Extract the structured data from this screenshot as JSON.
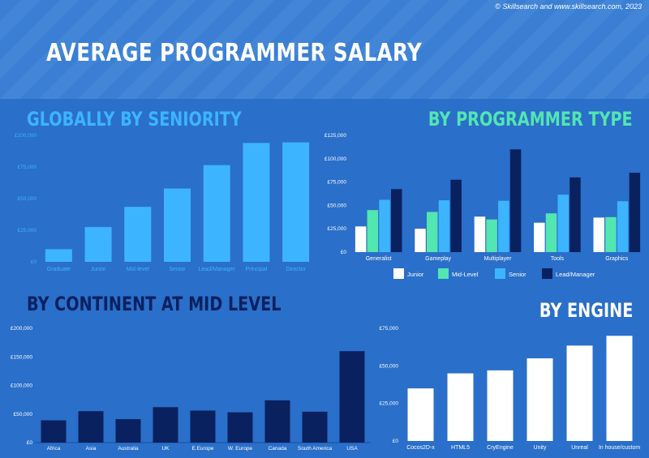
{
  "header": {
    "title": "AVERAGE PROGRAMMER SALARY",
    "copyright": "© Skillsearch and www.skillsearch.com, 2023"
  },
  "colors": {
    "background": "#2a6fc9",
    "header_band": "#3a7fd3",
    "light_blue": "#3db4ff",
    "mint": "#52e6b0",
    "navy": "#0a2160",
    "white": "#ffffff"
  },
  "chart_data": [
    {
      "id": "seniority",
      "type": "bar",
      "title": "GLOBALLY BY SENIORITY",
      "categories": [
        "Graduate",
        "Junior",
        "Mid-level",
        "Senior",
        "Lead/Manager",
        "Principal",
        "Director"
      ],
      "values": [
        10000,
        27500,
        43500,
        58000,
        76500,
        94000,
        94500
      ],
      "yticks": [
        "£0",
        "£25,000",
        "£50,000",
        "£75,000",
        "£100,000"
      ],
      "ylim": [
        0,
        100000
      ],
      "color": "#3db4ff"
    },
    {
      "id": "type",
      "type": "bar",
      "title": "BY PROGRAMMER TYPE",
      "categories": [
        "Generalist",
        "Gameplay",
        "Multiplayer",
        "Tools",
        "Graphics"
      ],
      "series": [
        {
          "name": "Junior",
          "color": "#ffffff",
          "values": [
            27500,
            25000,
            38000,
            31500,
            37000
          ]
        },
        {
          "name": "Mid-Level",
          "color": "#52e6b0",
          "values": [
            45000,
            43000,
            35000,
            41500,
            37500
          ]
        },
        {
          "name": "Senior",
          "color": "#3db4ff",
          "values": [
            56000,
            55500,
            55000,
            61500,
            54500
          ]
        },
        {
          "name": "Lead/Manager",
          "color": "#0a2160",
          "values": [
            67500,
            77500,
            110000,
            80000,
            85000
          ]
        }
      ],
      "yticks": [
        "£0",
        "£25,000",
        "£50,000",
        "£75,000",
        "£100,000",
        "£125,000"
      ],
      "ylim": [
        0,
        125000
      ]
    },
    {
      "id": "continent",
      "type": "bar",
      "title": "BY CONTINENT AT MID LEVEL",
      "categories": [
        "Africa",
        "Asia",
        "Australia",
        "UK",
        "E.Europe",
        "W. Europe",
        "Canada",
        "South America",
        "USA"
      ],
      "values": [
        39000,
        55000,
        41000,
        62000,
        56000,
        53000,
        74000,
        54000,
        160000
      ],
      "yticks": [
        "£0",
        "£50,000",
        "£100,000",
        "£150,000",
        "£200,000"
      ],
      "ylim": [
        0,
        200000
      ],
      "color": "#0a2160"
    },
    {
      "id": "engine",
      "type": "bar",
      "title": "BY ENGINE",
      "categories": [
        "Cocos2D-x",
        "HTML5",
        "CryEngine",
        "Unity",
        "Unreal",
        "In house/custom"
      ],
      "values": [
        35000,
        45000,
        47000,
        55000,
        63500,
        70000
      ],
      "yticks": [
        "£0",
        "£25,000",
        "£50,000",
        "£75,000"
      ],
      "ylim": [
        0,
        75000
      ],
      "color": "#ffffff"
    }
  ]
}
